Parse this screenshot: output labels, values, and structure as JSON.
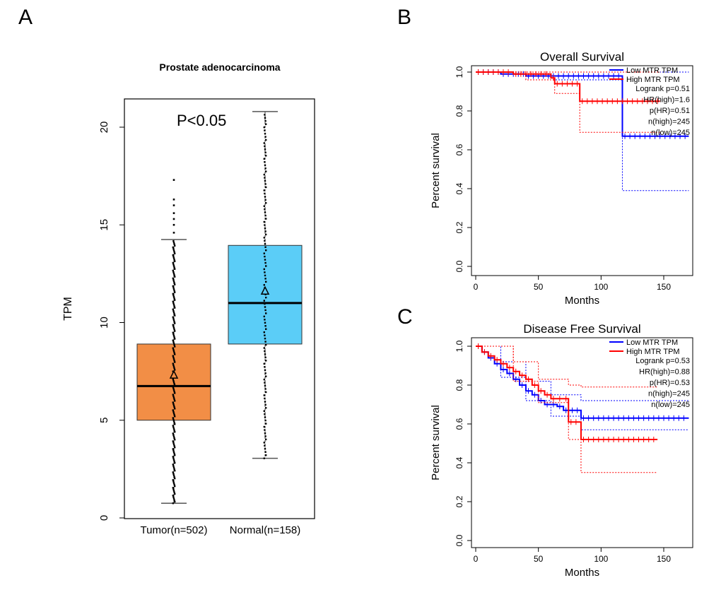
{
  "panels": {
    "a": "A",
    "b": "B",
    "c": "C"
  },
  "chart_data": [
    {
      "id": "A",
      "type": "box",
      "title": "Prostate adenocarcinoma",
      "ylabel": "TPM",
      "ylim": [
        0,
        21
      ],
      "yticks": [
        0,
        5,
        10,
        15,
        20
      ],
      "annotation": "P<0.05",
      "grid": false,
      "colors": {
        "tumor": "#f28e46",
        "normal": "#5bcdf7"
      },
      "groups": [
        {
          "label": "Tumor(n=502)",
          "whisker_low": 0.75,
          "q1": 5.0,
          "median": 6.75,
          "q3": 8.9,
          "whisker_high": 14.25,
          "mean": 7.3,
          "outliers_high": [
            14.6,
            15.0,
            15.3,
            15.6,
            16.0,
            16.3,
            17.3
          ]
        },
        {
          "label": "Normal(n=158)",
          "whisker_low": 3.05,
          "q1": 8.9,
          "median": 11.0,
          "q3": 13.95,
          "whisker_high": 20.8,
          "mean": 11.6,
          "outliers_high": []
        }
      ]
    },
    {
      "id": "B",
      "type": "line",
      "title": "Overall Survival",
      "xlabel": "Months",
      "ylabel": "Percent survival",
      "xlim": [
        0,
        170
      ],
      "ylim": [
        0,
        1
      ],
      "xticks": [
        0,
        50,
        100,
        150
      ],
      "yticks": [
        "0.0",
        "0.2",
        "0.4",
        "0.6",
        "0.8",
        "1.0"
      ],
      "legend_position": "top-right",
      "stats": [
        "Logrank p=0.51",
        "HR(high)=1.6",
        "p(HR)=0.51",
        "n(high)=245",
        "n(low)=245"
      ],
      "series": [
        {
          "name": "Low MTR TPM",
          "color": "#0000ff",
          "x": [
            0,
            20,
            40,
            117,
            117,
            170
          ],
          "y": [
            1.0,
            0.99,
            0.98,
            0.98,
            0.67,
            0.67
          ],
          "ci_low_x": [
            0,
            40,
            117,
            117,
            170
          ],
          "ci_low_y": [
            1.0,
            0.96,
            0.96,
            0.39,
            0.39
          ],
          "ci_high_x": [
            0,
            117,
            170
          ],
          "ci_high_y": [
            1.0,
            1.0,
            1.0
          ]
        },
        {
          "name": "High MTR TPM",
          "color": "#ff0000",
          "x": [
            0,
            30,
            60,
            63,
            63,
            83,
            83,
            147
          ],
          "y": [
            1.0,
            0.99,
            0.97,
            0.97,
            0.94,
            0.94,
            0.85,
            0.85
          ],
          "ci_low_x": [
            0,
            40,
            63,
            63,
            83,
            83,
            147
          ],
          "ci_low_y": [
            1.0,
            0.96,
            0.96,
            0.89,
            0.89,
            0.69,
            0.69
          ],
          "ci_high_x": [
            0,
            147
          ],
          "ci_high_y": [
            1.0,
            1.0
          ]
        }
      ]
    },
    {
      "id": "C",
      "type": "line",
      "title": "Disease Free Survival",
      "xlabel": "Months",
      "ylabel": "Percent survival",
      "xlim": [
        0,
        170
      ],
      "ylim": [
        0,
        1
      ],
      "xticks": [
        0,
        50,
        100,
        150
      ],
      "yticks": [
        "0.0",
        "0.2",
        "0.4",
        "0.6",
        "0.8",
        "1.0"
      ],
      "legend_position": "top-right",
      "stats": [
        "Logrank p=0.53",
        "HR(high)=0.88",
        "p(HR)=0.53",
        "n(high)=245",
        "n(low)=245"
      ],
      "series": [
        {
          "name": "Low MTR TPM",
          "color": "#0000ff",
          "x": [
            0,
            5,
            10,
            15,
            20,
            25,
            30,
            35,
            40,
            45,
            50,
            55,
            60,
            65,
            70,
            75,
            84,
            84,
            170
          ],
          "y": [
            1.0,
            0.97,
            0.94,
            0.91,
            0.88,
            0.86,
            0.83,
            0.8,
            0.77,
            0.75,
            0.72,
            0.7,
            0.7,
            0.69,
            0.67,
            0.67,
            0.67,
            0.63,
            0.63
          ],
          "ci_low_x": [
            0,
            20,
            40,
            60,
            84,
            170
          ],
          "ci_low_y": [
            1.0,
            0.84,
            0.72,
            0.64,
            0.57,
            0.57
          ],
          "ci_high_x": [
            0,
            20,
            40,
            60,
            84,
            170
          ],
          "ci_high_y": [
            1.0,
            0.92,
            0.82,
            0.75,
            0.72,
            0.72
          ]
        },
        {
          "name": "High MTR TPM",
          "color": "#ff0000",
          "x": [
            0,
            5,
            10,
            15,
            20,
            25,
            30,
            35,
            40,
            45,
            50,
            55,
            60,
            65,
            70,
            74,
            74,
            84,
            84,
            145
          ],
          "y": [
            1.0,
            0.97,
            0.95,
            0.93,
            0.91,
            0.89,
            0.87,
            0.85,
            0.83,
            0.8,
            0.77,
            0.75,
            0.73,
            0.73,
            0.73,
            0.73,
            0.61,
            0.61,
            0.52,
            0.52
          ],
          "ci_low_x": [
            0,
            30,
            50,
            74,
            84,
            145
          ],
          "ci_low_y": [
            1.0,
            0.82,
            0.71,
            0.52,
            0.35,
            0.35
          ],
          "ci_high_x": [
            0,
            30,
            50,
            74,
            84,
            145
          ],
          "ci_high_y": [
            1.0,
            0.92,
            0.83,
            0.8,
            0.79,
            0.79
          ]
        }
      ]
    }
  ]
}
